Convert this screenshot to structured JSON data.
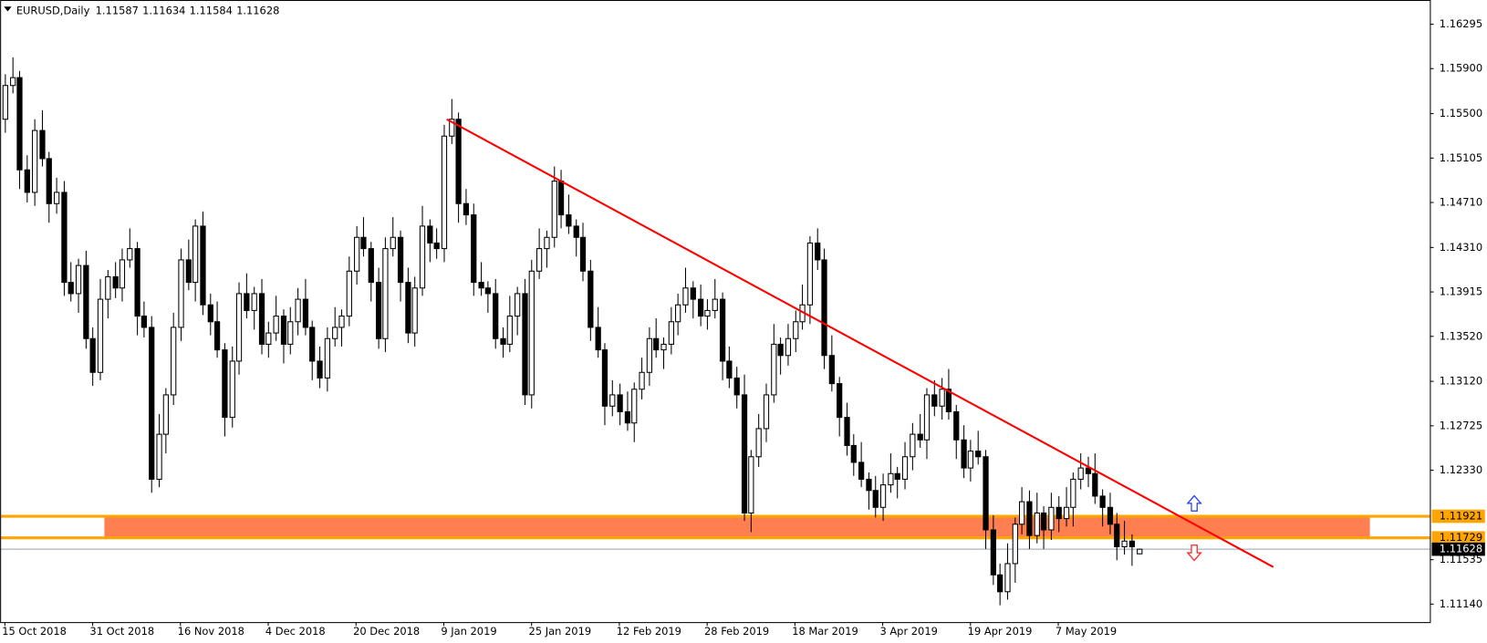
{
  "chart_data": {
    "type": "candlestick",
    "symbol": "EURUSD,Daily",
    "bull_color": "#ffffff",
    "bear_color": "#000000",
    "outline_color": "#000000",
    "categories": [
      "15 Oct 2018",
      null,
      null,
      null,
      null,
      null,
      null,
      null,
      null,
      null,
      null,
      null,
      "31 Oct 2018",
      null,
      null,
      null,
      null,
      null,
      null,
      null,
      null,
      null,
      null,
      null,
      "16 Nov 2018",
      null,
      null,
      null,
      null,
      null,
      null,
      null,
      null,
      null,
      null,
      null,
      "4 Dec 2018",
      null,
      null,
      null,
      null,
      null,
      null,
      null,
      null,
      null,
      null,
      null,
      "20 Dec 2018",
      null,
      null,
      null,
      null,
      null,
      null,
      null,
      null,
      null,
      null,
      null,
      "9 Jan 2019",
      null,
      null,
      null,
      null,
      null,
      null,
      null,
      null,
      null,
      null,
      null,
      "25 Jan 2019",
      null,
      null,
      null,
      null,
      null,
      null,
      null,
      null,
      null,
      null,
      null,
      "12 Feb 2019",
      null,
      null,
      null,
      null,
      null,
      null,
      null,
      null,
      null,
      null,
      null,
      "28 Feb 2019",
      null,
      null,
      null,
      null,
      null,
      null,
      null,
      null,
      null,
      null,
      null,
      "18 Mar 2019",
      null,
      null,
      null,
      null,
      null,
      null,
      null,
      null,
      null,
      null,
      null,
      "3 Apr 2019",
      null,
      null,
      null,
      null,
      null,
      null,
      null,
      null,
      null,
      null,
      null,
      "19 Apr 2019",
      null,
      null,
      null,
      null,
      null,
      null,
      null,
      null,
      null,
      null,
      null,
      "7 May 2019",
      null,
      null,
      null,
      null,
      null,
      null,
      null,
      null,
      null,
      null,
      null
    ],
    "open": [
      1.1545,
      1.1575,
      1.1582,
      1.15,
      1.148,
      1.1535,
      1.151,
      1.147,
      1.148,
      1.14,
      1.139,
      1.1415,
      1.135,
      1.132,
      1.1385,
      1.1405,
      1.1395,
      1.142,
      1.143,
      1.137,
      1.136,
      1.1225,
      1.1265,
      1.13,
      1.136,
      1.142,
      1.14,
      1.145,
      1.138,
      1.1365,
      1.134,
      1.128,
      1.133,
      1.139,
      1.1375,
      1.139,
      1.1345,
      1.1355,
      1.137,
      1.1345,
      1.1365,
      1.1385,
      1.136,
      1.133,
      1.1315,
      1.135,
      1.136,
      1.137,
      1.141,
      1.144,
      1.143,
      1.14,
      1.135,
      1.143,
      1.144,
      1.14,
      1.1355,
      1.1395,
      1.145,
      1.1435,
      1.143,
      1.153,
      1.1545,
      1.147,
      1.146,
      1.14,
      1.1395,
      1.139,
      1.135,
      1.1345,
      1.137,
      1.139,
      1.13,
      1.141,
      1.143,
      1.144,
      1.149,
      1.146,
      1.145,
      1.144,
      1.141,
      1.136,
      1.134,
      1.129,
      1.13,
      1.1285,
      1.1275,
      1.1305,
      1.132,
      1.135,
      1.134,
      1.1345,
      1.1365,
      1.138,
      1.1395,
      1.1385,
      1.137,
      1.1375,
      1.1385,
      1.133,
      1.1315,
      1.13,
      1.1195,
      1.1245,
      1.127,
      1.13,
      1.1345,
      1.1335,
      1.135,
      1.1365,
      1.138,
      1.1435,
      1.142,
      1.1335,
      1.131,
      1.128,
      1.1255,
      1.124,
      1.1225,
      1.1215,
      1.12,
      1.122,
      1.123,
      1.1225,
      1.1245,
      1.1265,
      1.126,
      1.13,
      1.129,
      1.1305,
      1.1285,
      1.126,
      1.1235,
      1.125,
      1.1245,
      1.118,
      1.114,
      1.1125,
      1.115,
      1.1185,
      1.1205,
      1.1175,
      1.1195,
      1.118,
      1.12,
      1.119,
      1.12,
      1.1225,
      1.1235,
      1.123,
      1.121,
      1.12,
      1.1185,
      1.1165,
      1.117,
      1.11587
    ],
    "high": [
      1.1585,
      1.16,
      1.1588,
      1.1513,
      1.1545,
      1.1553,
      1.1516,
      1.1493,
      1.149,
      1.1418,
      1.1421,
      1.1428,
      1.136,
      1.1403,
      1.1411,
      1.1418,
      1.143,
      1.1448,
      1.1436,
      1.1383,
      1.137,
      1.1283,
      1.1306,
      1.1373,
      1.143,
      1.1438,
      1.1456,
      1.1463,
      1.139,
      1.1383,
      1.1346,
      1.1343,
      1.14,
      1.1408,
      1.1396,
      1.1403,
      1.1365,
      1.1388,
      1.1376,
      1.1378,
      1.1395,
      1.1403,
      1.1366,
      1.1343,
      1.136,
      1.1378,
      1.1376,
      1.1423,
      1.145,
      1.1458,
      1.1436,
      1.1413,
      1.144,
      1.1458,
      1.1446,
      1.1413,
      1.1405,
      1.1468,
      1.1456,
      1.1448,
      1.154,
      1.1563,
      1.1551,
      1.1483,
      1.147,
      1.1418,
      1.1401,
      1.1403,
      1.136,
      1.1388,
      1.1396,
      1.1403,
      1.142,
      1.1448,
      1.1446,
      1.1503,
      1.15,
      1.1478,
      1.1456,
      1.1453,
      1.142,
      1.1378,
      1.1346,
      1.1313,
      1.131,
      1.1303,
      1.1311,
      1.1333,
      1.136,
      1.1368,
      1.1351,
      1.1378,
      1.139,
      1.1413,
      1.1401,
      1.1398,
      1.1385,
      1.1403,
      1.1391,
      1.1343,
      1.1325,
      1.1318,
      1.1251,
      1.1283,
      1.131,
      1.1363,
      1.1351,
      1.1363,
      1.1375,
      1.1398,
      1.1441,
      1.1448,
      1.143,
      1.1353,
      1.1316,
      1.1293,
      1.1265,
      1.1258,
      1.1231,
      1.1228,
      1.123,
      1.1248,
      1.1236,
      1.1258,
      1.1275,
      1.1283,
      1.1306,
      1.1313,
      1.1315,
      1.1323,
      1.1291,
      1.1273,
      1.126,
      1.1268,
      1.1251,
      1.1193,
      1.115,
      1.1168,
      1.1191,
      1.1218,
      1.1215,
      1.1213,
      1.1201,
      1.1213,
      1.121,
      1.1218,
      1.1231,
      1.1248,
      1.1245,
      1.1248,
      1.1216,
      1.1213,
      1.1195,
      1.1188,
      1.1176,
      1.11634
    ],
    "low": [
      1.1533,
      1.1568,
      1.1483,
      1.1471,
      1.1468,
      1.1503,
      1.1453,
      1.1461,
      1.1388,
      1.1383,
      1.1373,
      1.1341,
      1.1308,
      1.1313,
      1.1368,
      1.1386,
      1.1383,
      1.1413,
      1.1353,
      1.1351,
      1.1213,
      1.1218,
      1.1248,
      1.1291,
      1.1348,
      1.1393,
      1.1383,
      1.1371,
      1.1353,
      1.1333,
      1.1263,
      1.1271,
      1.1318,
      1.1368,
      1.1358,
      1.1336,
      1.1333,
      1.1348,
      1.1328,
      1.1336,
      1.1353,
      1.1353,
      1.1313,
      1.1306,
      1.1303,
      1.1343,
      1.1343,
      1.1361,
      1.1398,
      1.1423,
      1.1383,
      1.1341,
      1.1338,
      1.1423,
      1.1383,
      1.1346,
      1.1343,
      1.1388,
      1.1418,
      1.1421,
      1.1418,
      1.1523,
      1.1453,
      1.1451,
      1.1388,
      1.1388,
      1.1373,
      1.1341,
      1.1333,
      1.1338,
      1.1353,
      1.1291,
      1.1288,
      1.1403,
      1.1413,
      1.1431,
      1.1448,
      1.1443,
      1.1423,
      1.1401,
      1.1348,
      1.1333,
      1.1273,
      1.1281,
      1.1273,
      1.1268,
      1.1258,
      1.1296,
      1.1308,
      1.1333,
      1.1323,
      1.1336,
      1.1353,
      1.1373,
      1.1368,
      1.1361,
      1.1358,
      1.1368,
      1.1313,
      1.1306,
      1.1288,
      1.1188,
      1.1178,
      1.1236,
      1.1258,
      1.1293,
      1.1318,
      1.1326,
      1.1338,
      1.1358,
      1.1363,
      1.1411,
      1.1323,
      1.1303,
      1.1263,
      1.1246,
      1.1228,
      1.1218,
      1.1198,
      1.1191,
      1.1188,
      1.1213,
      1.1208,
      1.1216,
      1.1233,
      1.1253,
      1.1243,
      1.1281,
      1.1278,
      1.1278,
      1.1243,
      1.1226,
      1.1223,
      1.1238,
      1.1163,
      1.1131,
      1.1113,
      1.1118,
      1.1133,
      1.1176,
      1.1163,
      1.1168,
      1.1163,
      1.1171,
      1.1178,
      1.1183,
      1.1183,
      1.1216,
      1.1218,
      1.1203,
      1.1183,
      1.1176,
      1.1153,
      1.1158,
      1.1148,
      1.11584
    ],
    "close": [
      1.1575,
      1.1582,
      1.15,
      1.148,
      1.1535,
      1.151,
      1.147,
      1.148,
      1.14,
      1.139,
      1.1415,
      1.135,
      1.132,
      1.1385,
      1.1405,
      1.1395,
      1.142,
      1.143,
      1.137,
      1.136,
      1.1225,
      1.1265,
      1.13,
      1.136,
      1.142,
      1.14,
      1.145,
      1.138,
      1.1365,
      1.134,
      1.128,
      1.133,
      1.139,
      1.1375,
      1.139,
      1.1345,
      1.1355,
      1.137,
      1.1345,
      1.1365,
      1.1385,
      1.136,
      1.133,
      1.1315,
      1.135,
      1.136,
      1.137,
      1.141,
      1.144,
      1.143,
      1.14,
      1.135,
      1.143,
      1.144,
      1.14,
      1.1355,
      1.1395,
      1.145,
      1.1435,
      1.143,
      1.153,
      1.1545,
      1.147,
      1.146,
      1.14,
      1.1395,
      1.139,
      1.135,
      1.1345,
      1.137,
      1.139,
      1.13,
      1.141,
      1.143,
      1.144,
      1.149,
      1.146,
      1.145,
      1.144,
      1.141,
      1.136,
      1.134,
      1.129,
      1.13,
      1.1285,
      1.1275,
      1.1305,
      1.132,
      1.135,
      1.134,
      1.1345,
      1.1365,
      1.138,
      1.1395,
      1.1385,
      1.137,
      1.1375,
      1.1385,
      1.133,
      1.1315,
      1.13,
      1.1195,
      1.1245,
      1.127,
      1.13,
      1.1345,
      1.1335,
      1.135,
      1.1365,
      1.138,
      1.1435,
      1.142,
      1.1335,
      1.131,
      1.128,
      1.1255,
      1.124,
      1.1225,
      1.1215,
      1.12,
      1.122,
      1.123,
      1.1225,
      1.1245,
      1.1265,
      1.126,
      1.13,
      1.129,
      1.1305,
      1.1285,
      1.126,
      1.1235,
      1.125,
      1.1245,
      1.118,
      1.114,
      1.1125,
      1.115,
      1.1185,
      1.1205,
      1.1175,
      1.1195,
      1.118,
      1.12,
      1.119,
      1.12,
      1.1225,
      1.1235,
      1.123,
      1.121,
      1.12,
      1.1185,
      1.1165,
      1.117,
      1.1165,
      1.11628
    ],
    "xlim": [
      -0.65,
      194.8
    ],
    "ylim": [
      1.1098,
      1.1651
    ],
    "yticks": [
      1.16295,
      {
        "value": 1.159,
        "label": "1.15900"
      },
      {
        "value": 1.155,
        "label": "1.15500"
      },
      1.15105,
      {
        "value": 1.1471,
        "label": "1.14710"
      },
      {
        "value": 1.1431,
        "label": "1.14310"
      },
      1.13915,
      {
        "value": 1.1352,
        "label": "1.13520"
      },
      {
        "value": 1.1312,
        "label": "1.13120"
      },
      1.12725,
      {
        "value": 1.1233,
        "label": "1.12330"
      },
      1.11535,
      {
        "value": 1.1114,
        "label": "1.11140"
      }
    ],
    "zone": {
      "low": 1.11729,
      "high": 1.11921,
      "start": 13.6,
      "end": 186.6,
      "fill": "#ff7f50",
      "line_color": "#ffa500"
    },
    "trendline": {
      "x": [
        60.4,
        173.4
      ],
      "values": [
        1.1545,
        1.1147
      ],
      "color": "#ff0000"
    },
    "price_line_color": "#8fa0b4"
  }
}
